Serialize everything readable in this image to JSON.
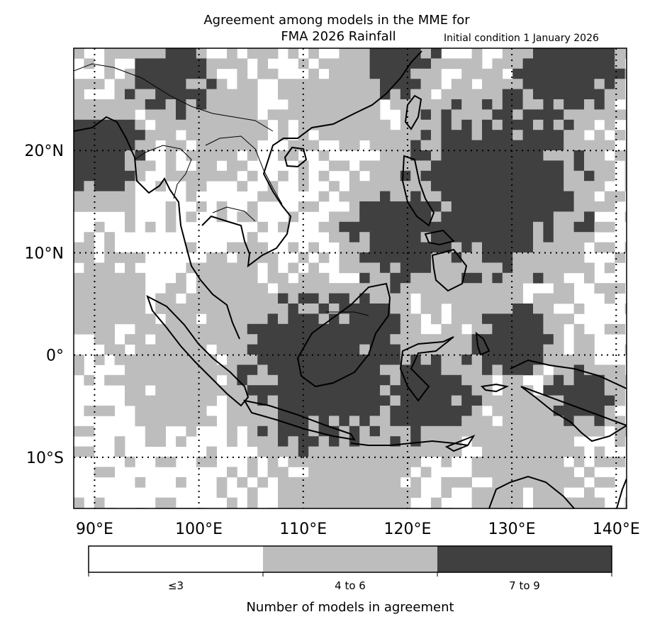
{
  "title": {
    "line1": "Agreement among models in the MME for",
    "line2": "FMA 2026  Rainfall",
    "initial_condition": "Initial condition 1 January 2026"
  },
  "map": {
    "lon_range": [
      88,
      141
    ],
    "lat_range": [
      -15,
      30
    ],
    "lon_ticks": [
      "90°E",
      "100°E",
      "110°E",
      "120°E",
      "130°E",
      "140°E"
    ],
    "lat_ticks": [
      "20°N",
      "10°N",
      "0°",
      "10°S"
    ],
    "gridlines": true,
    "colors": {
      "low": "#ffffff",
      "mid": "#bdbdbd",
      "high": "#404040",
      "coast": "#000000"
    }
  },
  "colorbar": {
    "label": "Number of models in agreement",
    "categories": [
      "≤3",
      "4 to 6",
      "7 to 9"
    ],
    "colors": [
      "#ffffff",
      "#bdbdbd",
      "#404040"
    ]
  }
}
